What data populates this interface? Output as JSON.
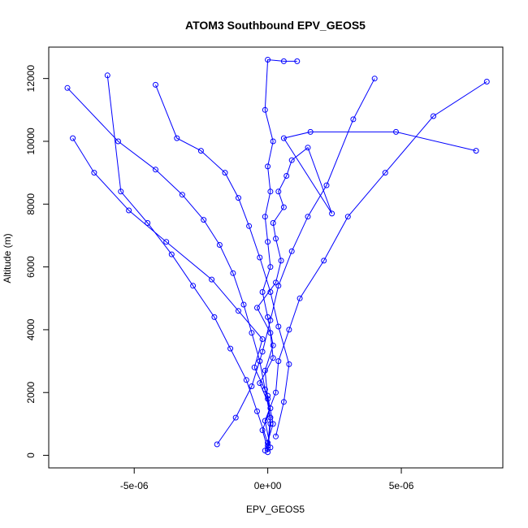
{
  "chart_data": {
    "type": "scatter",
    "title": "ATOM3 Southbound EPV_GEOS5",
    "xlabel": "EPV_GEOS5",
    "ylabel": "Altitude (m)",
    "xlim": [
      -8.2e-06,
      8.8e-06
    ],
    "ylim": [
      -400,
      13000
    ],
    "x_ticks": [
      -5e-06,
      0,
      5e-06
    ],
    "x_tick_labels": [
      "-5e-06",
      "0e+00",
      "5e-06"
    ],
    "y_ticks": [
      0,
      2000,
      4000,
      6000,
      8000,
      10000,
      12000
    ],
    "y_tick_labels": [
      "0",
      "2000",
      "4000",
      "6000",
      "8000",
      "10000",
      "12000"
    ],
    "grid": false,
    "legend": "none",
    "marker": "open-circle",
    "connected_lines": true,
    "color": "#0000ff",
    "series": [
      {
        "x": [
          0.0,
          -2e-07,
          1e-07,
          -3e-07,
          2e-07,
          1e-07,
          -4e-07,
          3e-07,
          5e-07,
          3e-07,
          2e-07,
          6e-07,
          4e-07,
          7e-07,
          9e-07,
          1.5e-06,
          2.4e-06,
          6e-07,
          1.6e-06,
          4.8e-06,
          7.8e-06
        ],
        "y": [
          200,
          800,
          1500,
          2300,
          3100,
          3900,
          4700,
          5500,
          6200,
          6900,
          7400,
          7900,
          8400,
          8900,
          9400,
          9800,
          7700,
          10100,
          10300,
          10300,
          9700
        ]
      },
      {
        "x": [
          0.0,
          1e-07,
          -1e-07,
          -3e-07,
          -6e-07,
          -9e-07,
          -1.3e-06,
          -1.8e-06,
          -2.4e-06,
          -3.2e-06,
          -4.2e-06,
          -5.6e-06,
          -7.5e-06
        ],
        "y": [
          300,
          1200,
          2100,
          3000,
          3900,
          4800,
          5800,
          6700,
          7500,
          8300,
          9100,
          10000,
          11700
        ]
      },
      {
        "x": [
          -1e-07,
          2e-07,
          0.0,
          -5e-07,
          -2e-07,
          -1.1e-06,
          -2.1e-06,
          -3.8e-06,
          -5.2e-06,
          -6.5e-06,
          -7.3e-06
        ],
        "y": [
          150,
          1000,
          1900,
          2800,
          3700,
          4600,
          5600,
          6800,
          7800,
          9000,
          10100
        ]
      },
      {
        "x": [
          1e-07,
          -1e-07,
          3e-07,
          4e-07,
          8e-07,
          1.2e-06,
          2.1e-06,
          3e-06,
          4.4e-06,
          6.2e-06,
          8.2e-06
        ],
        "y": [
          250,
          1100,
          2000,
          3000,
          4000,
          5000,
          6200,
          7600,
          9000,
          10800,
          11900
        ]
      },
      {
        "x": [
          0.0,
          -4e-07,
          -8e-07,
          -1.4e-06,
          -2e-06,
          -2.8e-06,
          -3.6e-06,
          -4.5e-06,
          -5.5e-06,
          -6e-06
        ],
        "y": [
          400,
          1400,
          2400,
          3400,
          4400,
          5400,
          6400,
          7400,
          8400,
          12100
        ]
      },
      {
        "x": [
          -1.9e-06,
          -1.2e-06,
          -6e-07,
          -2e-07,
          1e-07,
          4e-07,
          9e-07,
          1.5e-06,
          2.2e-06,
          3.2e-06,
          4e-06
        ],
        "y": [
          350,
          1200,
          2200,
          3300,
          4300,
          5400,
          6500,
          7600,
          8600,
          10700,
          12000
        ]
      },
      {
        "x": [
          0.0,
          1e-07,
          0.0,
          -1e-07,
          2e-07,
          0.0,
          -2e-07,
          1e-07,
          0.0,
          -1e-07,
          1e-07,
          0.0,
          2e-07,
          -1e-07,
          0.0,
          6e-07,
          1.1e-06
        ],
        "y": [
          100,
          1000,
          1800,
          2700,
          3500,
          4400,
          5200,
          6000,
          6800,
          7600,
          8400,
          9200,
          10000,
          11000,
          12600,
          12550,
          12550
        ]
      },
      {
        "x": [
          3e-07,
          6e-07,
          8e-07,
          4e-07,
          1e-07,
          -3e-07,
          -7e-07,
          -1.1e-06,
          -1.6e-06,
          -2.5e-06,
          -3.4e-06,
          -4.2e-06
        ],
        "y": [
          600,
          1700,
          2900,
          4100,
          5200,
          6300,
          7300,
          8200,
          9000,
          9700,
          10100,
          11800
        ]
      }
    ]
  }
}
